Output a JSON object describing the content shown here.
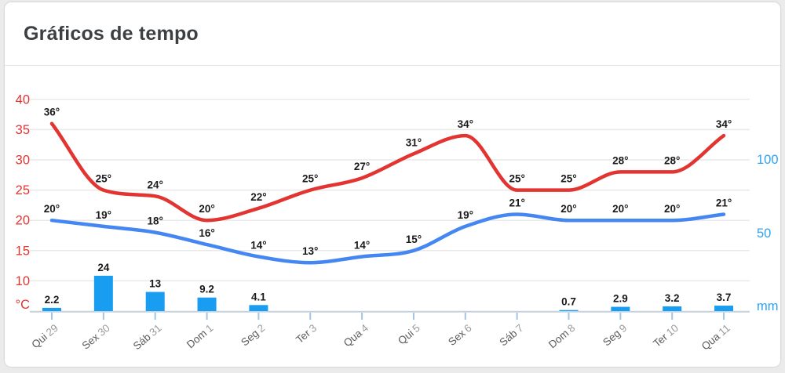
{
  "page": {
    "title": "Gráficos de tempo"
  },
  "chart_data": {
    "type": "line+bar combo (weather)",
    "title": "Gráficos de tempo",
    "categories": [
      "Qui 29",
      "Sex 30",
      "Sáb 31",
      "Dom 1",
      "Seg 2",
      "Ter 3",
      "Qua 4",
      "Qui 5",
      "Sex 6",
      "Sáb 7",
      "Dom 8",
      "Seg 9",
      "Ter 10",
      "Qua 11"
    ],
    "series": [
      {
        "name": "max-temperature",
        "type": "line",
        "unit": "°",
        "color": "#e23431",
        "values": [
          36,
          25,
          24,
          20,
          22,
          25,
          27,
          31,
          34,
          25,
          25,
          28,
          28,
          34
        ]
      },
      {
        "name": "min-temperature",
        "type": "line",
        "unit": "°",
        "color": "#4486f2",
        "values": [
          20,
          19,
          18,
          16,
          14,
          13,
          14,
          15,
          19,
          21,
          20,
          20,
          20,
          21
        ]
      },
      {
        "name": "precipitation",
        "type": "bar",
        "unit": "mm",
        "color": "#189df0",
        "values": [
          2.2,
          24,
          13,
          9.2,
          4.1,
          null,
          null,
          null,
          null,
          null,
          0.7,
          2.9,
          3.2,
          3.7
        ]
      }
    ],
    "left_axis": {
      "label": "°C",
      "ticks": [
        40,
        35,
        30,
        25,
        20,
        15,
        10
      ],
      "color": "#e23431",
      "range_hint": "baseline = 5°C"
    },
    "right_axis": {
      "label": "mm",
      "ticks": [
        100,
        50
      ],
      "color": "#2ea2f2",
      "range_hint": "baseline = 0 mm"
    },
    "grid": true,
    "legend": "none",
    "data_label_color": "#1a1a1a",
    "x_label_day_color": "#5b5b5b",
    "x_label_num_color": "#9b9b9b"
  },
  "colors": {
    "card_background": "#ffffff",
    "page_background": "#ebebeb",
    "grid_line": "#e9e9e9",
    "axis_baseline": "#c5d1dd",
    "axis_tick": "#a3c4e6",
    "title_text": "#3c4043"
  }
}
